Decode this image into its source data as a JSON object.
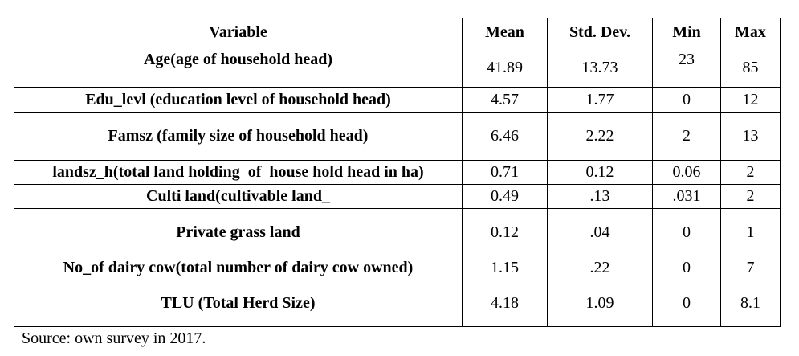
{
  "table": {
    "headers": [
      "Variable",
      "Mean",
      "Std. Dev.",
      "Min",
      "Max"
    ],
    "rows": [
      {
        "variable": "Age(age of household head)",
        "mean": "41.89",
        "sd": "13.73",
        "min": "23",
        "max": "85"
      },
      {
        "variable": "Edu_levl (education level of household head)",
        "mean": "4.57",
        "sd": "1.77",
        "min": "0",
        "max": "12"
      },
      {
        "variable": "Famsz (family size of household head)",
        "mean": "6.46",
        "sd": "2.22",
        "min": "2",
        "max": "13"
      },
      {
        "variable": "landsz_h(total land holding  of  house hold head in ha)",
        "mean": "0.71",
        "sd": "0.12",
        "min": "0.06",
        "max": "2"
      },
      {
        "variable": "Culti land(cultivable land_",
        "mean": "0.49",
        "sd": ".13",
        "min": ".031",
        "max": "2"
      },
      {
        "variable": "Private grass land",
        "mean": "0.12",
        "sd": ".04",
        "min": "0",
        "max": "1"
      },
      {
        "variable": "No_of dairy cow(total number of dairy cow owned)",
        "mean": "1.15",
        "sd": ".22",
        "min": "0",
        "max": "7"
      },
      {
        "variable": "TLU (Total Herd Size)",
        "mean": "4.18",
        "sd": "1.09",
        "min": "0",
        "max": "8.1"
      }
    ]
  },
  "source": "Source: own survey in 2017."
}
